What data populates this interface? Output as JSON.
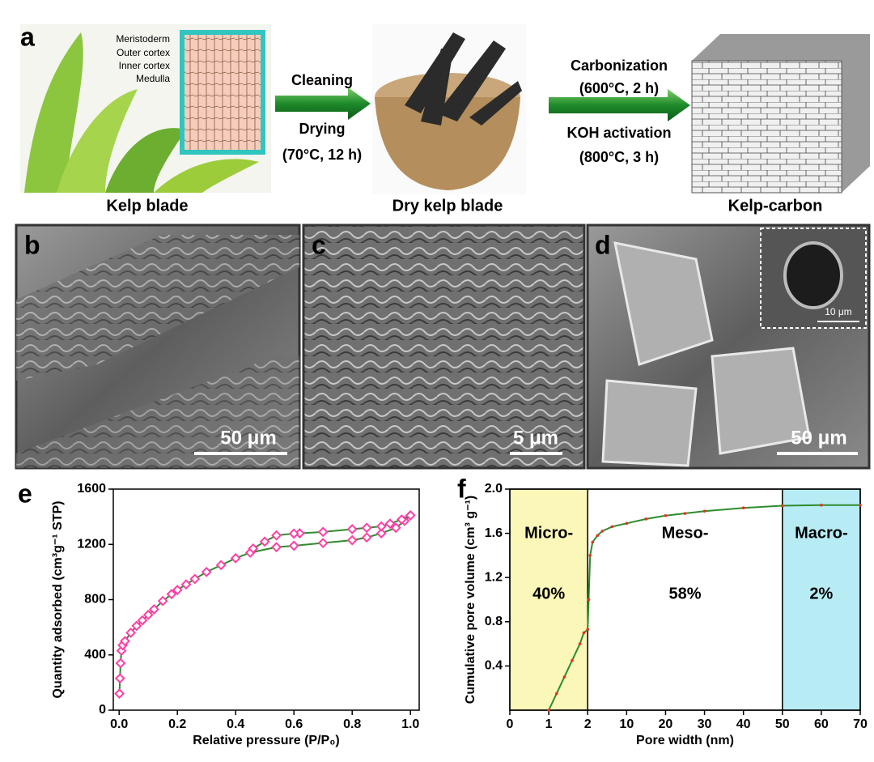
{
  "figure": {
    "panels": {
      "a": "a",
      "b": "b",
      "c": "c",
      "d": "d",
      "e": "e",
      "f": "f"
    },
    "kelp_layers": [
      "Meristoderm",
      "Outer cortex",
      "Inner cortex",
      "Medulla"
    ],
    "captions": [
      "Kelp blade",
      "Dry kelp blade",
      "Kelp-carbon"
    ],
    "step1": [
      "Cleaning",
      "Drying",
      "(70°C, 12 h)"
    ],
    "step2": [
      "Carbonization",
      "(600°C, 2 h)",
      "KOH activation",
      "(800°C, 3 h)"
    ],
    "scale_bars": [
      "50 μm",
      "5 μm",
      "50 μm",
      "10 μm"
    ]
  },
  "chart_data": [
    {
      "type": "line",
      "x_label": "Relative pressure (P/P₀)",
      "y_label": "Quantity adsorbed (cm³g⁻¹ STP)",
      "xlim": [
        -0.02,
        1.03
      ],
      "ylim": [
        0,
        1600
      ],
      "xticks": [
        {
          "value": 0,
          "label": "0.0"
        },
        0.2,
        0.4,
        0.6,
        0.8,
        {
          "value": 1,
          "label": "1.0"
        }
      ],
      "yticks": [
        0,
        400,
        800,
        1200,
        1600
      ],
      "line_color": "#2e8b2e",
      "marker_color": "#ff3fa6",
      "marker": "diamond",
      "series": [
        {
          "x": [
            0.001,
            0.003,
            0.005,
            0.008,
            0.012,
            0.02,
            0.04,
            0.06,
            0.08,
            0.1,
            0.12,
            0.15,
            0.18,
            0.2,
            0.23,
            0.26,
            0.3,
            0.35,
            0.4,
            0.45,
            0.54,
            0.6,
            0.7,
            0.8,
            0.85,
            0.9,
            0.95,
            0.98,
            1.0
          ],
          "values": [
            120,
            230,
            340,
            430,
            470,
            500,
            560,
            610,
            650,
            690,
            730,
            790,
            840,
            870,
            910,
            950,
            1000,
            1050,
            1100,
            1140,
            1180,
            1190,
            1210,
            1230,
            1250,
            1280,
            1320,
            1370,
            1410
          ]
        },
        {
          "x": [
            1.0,
            0.97,
            0.93,
            0.9,
            0.85,
            0.8,
            0.7,
            0.62,
            0.6,
            0.54,
            0.5,
            0.46
          ],
          "values": [
            1410,
            1380,
            1350,
            1330,
            1320,
            1310,
            1290,
            1280,
            1278,
            1265,
            1220,
            1170
          ]
        }
      ]
    },
    {
      "type": "line",
      "x_label": "Pore width (nm)",
      "y_label": "Cumulative pore volume (cm³ g⁻¹)",
      "x_axis": "segmented",
      "xlim": [
        0,
        70
      ],
      "ylim": [
        0,
        2.0
      ],
      "xticks": [
        0,
        1,
        2,
        10,
        20,
        30,
        40,
        50,
        60,
        70
      ],
      "yticks": [
        0.4,
        0.8,
        1.2,
        1.6,
        {
          "value": 2.0,
          "label": "2.0"
        }
      ],
      "line_color": "#2e8b2e",
      "marker_color": "#e8321e",
      "marker": "dot",
      "regions": [
        {
          "name": "Micro-",
          "from": 0,
          "to": 2,
          "share": 40,
          "share_label": "40%",
          "color": "#fbf7b8"
        },
        {
          "name": "Meso-",
          "from": 2,
          "to": 50,
          "share": 58,
          "share_label": "58%",
          "color": "#ffffff"
        },
        {
          "name": "Macro-",
          "from": 50,
          "to": 70,
          "share": 2,
          "share_label": "2%",
          "color": "#b8ecf5"
        }
      ],
      "series": [
        {
          "x": [
            1.0,
            1.2,
            1.4,
            1.6,
            1.8,
            1.9,
            2.0,
            2.2,
            2.5,
            3,
            4,
            5,
            7,
            10,
            15,
            20,
            25,
            30,
            40,
            50,
            60,
            70
          ],
          "values": [
            0,
            0.15,
            0.3,
            0.45,
            0.6,
            0.7,
            0.73,
            1.0,
            1.4,
            1.52,
            1.58,
            1.62,
            1.66,
            1.69,
            1.73,
            1.76,
            1.78,
            1.8,
            1.83,
            1.85,
            1.855,
            1.855
          ]
        }
      ]
    }
  ]
}
